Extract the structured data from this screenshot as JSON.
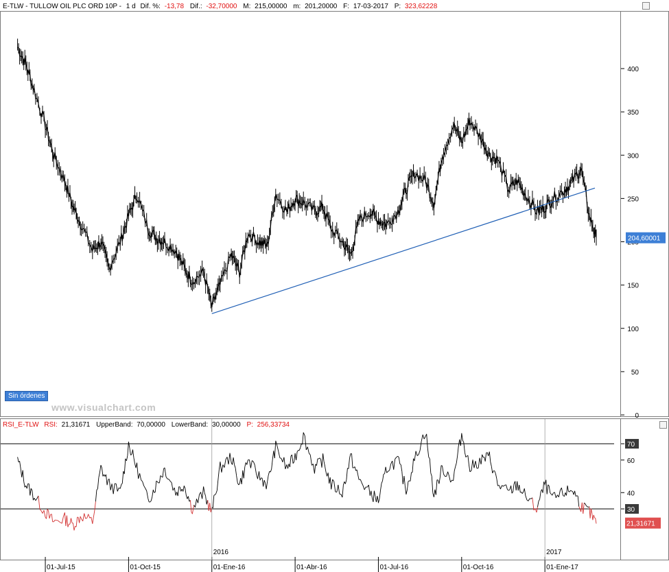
{
  "header": {
    "symbol": "E-TLW - TULLOW OIL PLC ORD 10P -",
    "interval": "1 d",
    "dif_pct_label": "Dif. %:",
    "dif_pct_value": "-13,78",
    "dif_label": "Dif.:",
    "dif_value": "-32,70000",
    "max_label": "M:",
    "max_value": "215,00000",
    "min_label": "m:",
    "min_value": "201,20000",
    "date_label": "F:",
    "date_value": "17-03-2017",
    "p_label": "P:",
    "p_value": "323,62228"
  },
  "rsi_header": {
    "name": "RSI_E-TLW",
    "rsi_label": "RSI:",
    "rsi_value": "21,31671",
    "upper_label": "UpperBand:",
    "upper_value": "70,00000",
    "lower_label": "LowerBand:",
    "lower_value": "30,00000",
    "p_label": "P:",
    "p_value": "256,33734"
  },
  "badge": "Sin órdenes",
  "watermark": "www.visualchart.com",
  "colors": {
    "up_header": "#000000",
    "negative": "#e01010",
    "trendline": "#1f5fb5",
    "last_price_bg": "#3d7fd6",
    "rsi_low": "#d23030"
  },
  "chart_data": [
    {
      "type": "candlestick",
      "title": "E-TLW - TULLOW OIL PLC ORD 10P",
      "yticks": [
        0,
        50,
        100,
        150,
        200,
        250,
        300,
        350,
        400
      ],
      "ylim": [
        0,
        470
      ],
      "last_price_label": "204,60001",
      "x_tick_labels": [
        "01-Jul-15",
        "01-Oct-15",
        "01-Ene-16",
        "01-Abr-16",
        "01-Jul-16",
        "01-Oct-16",
        "01-Ene-17"
      ],
      "year_labels": [
        "2016",
        "2017"
      ],
      "x_month_index_of_ticks": [
        1,
        4,
        7,
        10,
        13,
        16,
        19
      ],
      "x_month_index_of_years": [
        7,
        19
      ],
      "series": [
        {
          "x": [
            0,
            0.3,
            0.6,
            1.0,
            1.3,
            1.7,
            2.0,
            2.3,
            2.7,
            3.0,
            3.3,
            3.7,
            4.0,
            4.3,
            4.7,
            5.0,
            5.3,
            5.7,
            6.0,
            6.3,
            6.7,
            7.0,
            7.3,
            7.7,
            8.0,
            8.3,
            8.7,
            9.0,
            9.3,
            9.7,
            10.0,
            10.3,
            10.7,
            11.0,
            11.3,
            11.7,
            12.0,
            12.3,
            12.7,
            13.0,
            13.3,
            13.7,
            14.0,
            14.3,
            14.7,
            15.0,
            15.3,
            15.7,
            16.0,
            16.3,
            16.7,
            17.0,
            17.3,
            17.7,
            18.0,
            18.3,
            18.7,
            19.0,
            19.3,
            19.7,
            20.0,
            20.3,
            20.6,
            20.85
          ],
          "close": [
            425,
            405,
            375,
            335,
            300,
            270,
            240,
            220,
            190,
            200,
            170,
            200,
            230,
            255,
            215,
            205,
            200,
            190,
            170,
            155,
            165,
            125,
            150,
            185,
            165,
            210,
            200,
            195,
            255,
            235,
            250,
            245,
            235,
            240,
            215,
            200,
            185,
            225,
            235,
            225,
            220,
            235,
            260,
            280,
            270,
            245,
            300,
            335,
            315,
            340,
            320,
            300,
            295,
            260,
            270,
            255,
            235,
            240,
            250,
            260,
            270,
            285,
            230,
            205
          ]
        }
      ],
      "trendline": {
        "from": {
          "x": 7.0,
          "y": 117
        },
        "to": {
          "x": 20.8,
          "y": 262
        }
      }
    },
    {
      "type": "line",
      "title": "RSI_E-TLW",
      "yticks": [
        30,
        40,
        60,
        70
      ],
      "ylim": [
        10,
        80
      ],
      "bands": {
        "upper": 70,
        "lower": 30
      },
      "last_value_label": "21,31671",
      "upper_label": "70",
      "lower_label": "30",
      "series": [
        {
          "x": [
            0,
            0.3,
            0.6,
            1.0,
            1.3,
            1.7,
            2.0,
            2.3,
            2.7,
            3.0,
            3.3,
            3.7,
            4.0,
            4.3,
            4.7,
            5.0,
            5.3,
            5.7,
            6.0,
            6.3,
            6.7,
            7.0,
            7.3,
            7.7,
            8.0,
            8.3,
            8.7,
            9.0,
            9.3,
            9.7,
            10.0,
            10.3,
            10.7,
            11.0,
            11.3,
            11.7,
            12.0,
            12.3,
            12.7,
            13.0,
            13.3,
            13.7,
            14.0,
            14.3,
            14.7,
            15.0,
            15.3,
            15.7,
            16.0,
            16.3,
            16.7,
            17.0,
            17.3,
            17.7,
            18.0,
            18.3,
            18.7,
            19.0,
            19.3,
            19.7,
            20.0,
            20.3,
            20.6,
            20.85
          ],
          "values": [
            60,
            45,
            38,
            28,
            22,
            24,
            20,
            26,
            22,
            55,
            45,
            40,
            70,
            55,
            35,
            45,
            55,
            40,
            45,
            30,
            40,
            28,
            55,
            62,
            45,
            60,
            50,
            45,
            68,
            55,
            62,
            75,
            55,
            60,
            45,
            40,
            62,
            48,
            40,
            35,
            55,
            60,
            42,
            60,
            78,
            38,
            55,
            48,
            76,
            55,
            60,
            62,
            45,
            40,
            45,
            38,
            30,
            45,
            36,
            40,
            42,
            32,
            28,
            21
          ]
        }
      ]
    }
  ]
}
